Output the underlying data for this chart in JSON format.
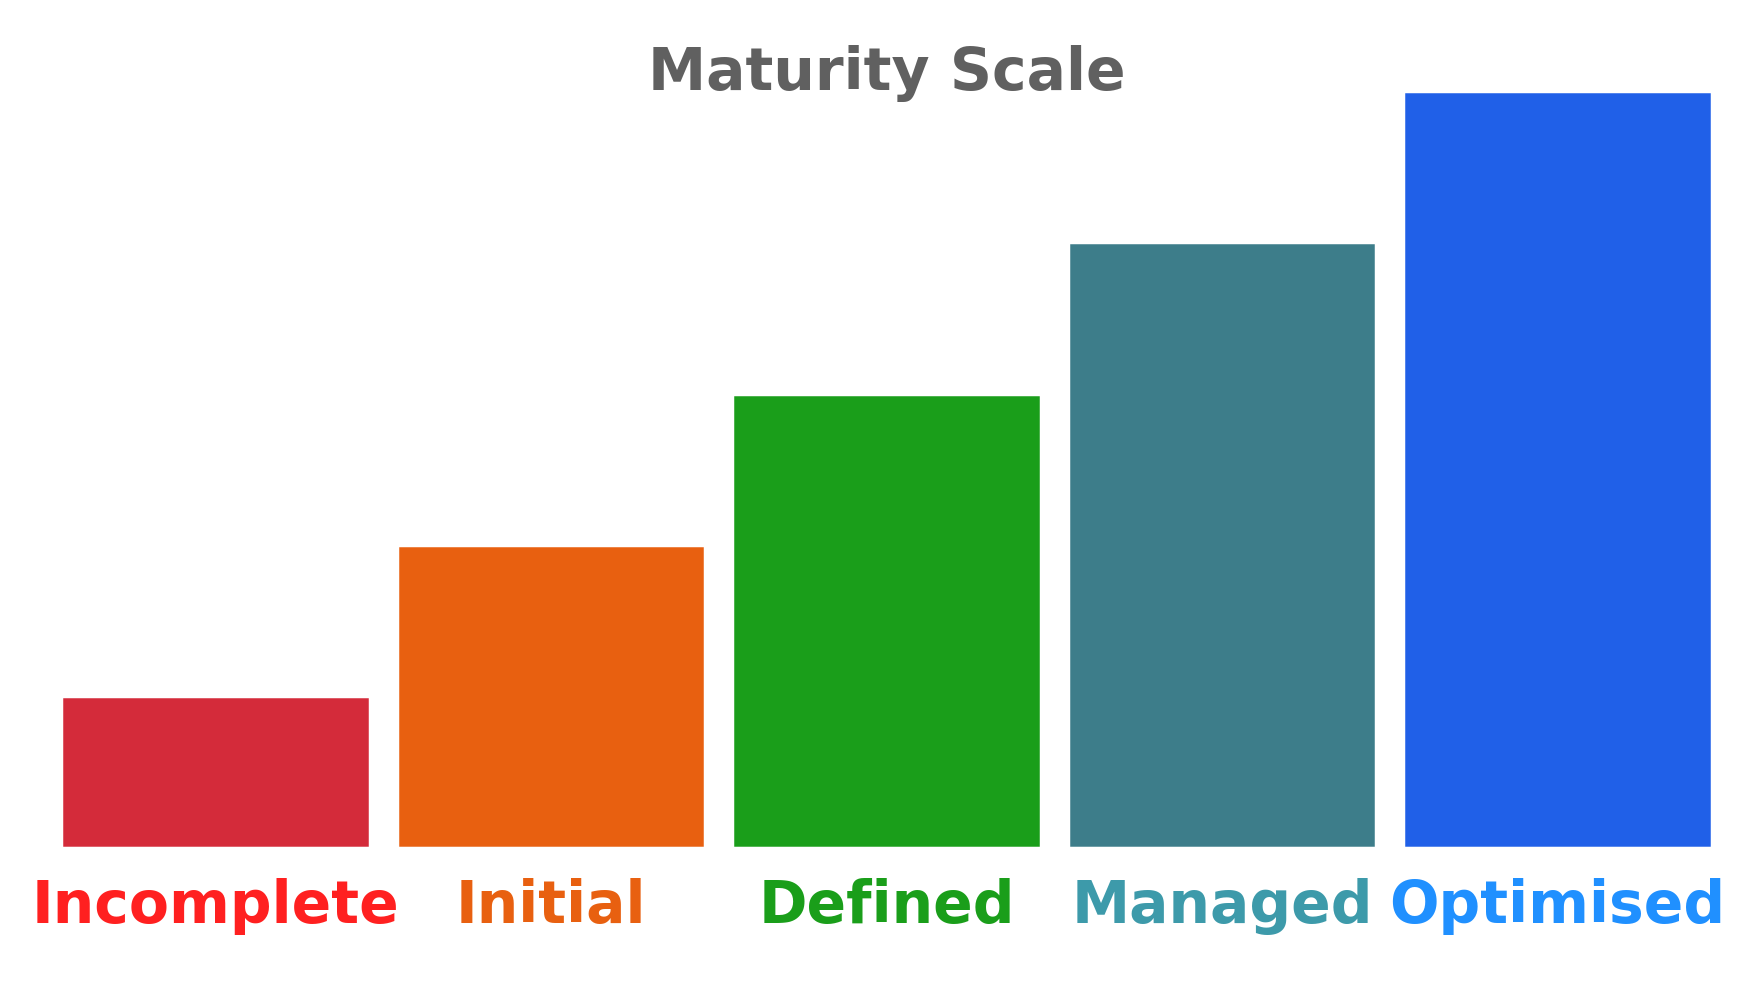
{
  "categories": [
    "Incomplete",
    "Initial",
    "Defined",
    "Managed",
    "Optimised"
  ],
  "values": [
    1.0,
    2.0,
    3.0,
    4.0,
    5.0
  ],
  "bar_colors": [
    "#D42B3A",
    "#E86010",
    "#1A9E1A",
    "#3D7D8A",
    "#2060E8"
  ],
  "label_colors": [
    "#FF2020",
    "#E86010",
    "#1A9E1A",
    "#3D9AAA",
    "#2090FF"
  ],
  "title": "Maturity Scale",
  "title_color": "#606060",
  "background_color": "#000000",
  "figure_background": "#FFFFFF",
  "title_fontsize": 42,
  "label_fontsize": 42
}
